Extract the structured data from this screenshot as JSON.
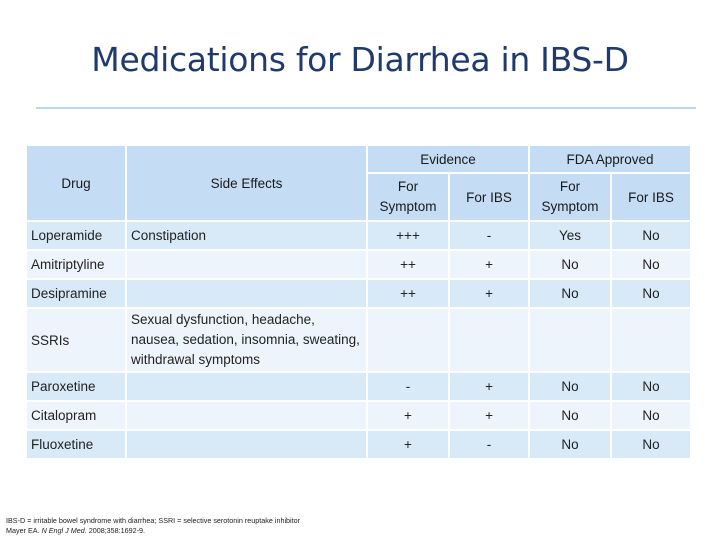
{
  "title": "Medications for Diarrhea in IBS-D",
  "table": {
    "headers": {
      "drug": "Drug",
      "side_effects": "Side Effects",
      "evidence": "Evidence",
      "fda": "FDA Approved",
      "for_symptom": "For Symptom",
      "for_ibs": "For IBS"
    },
    "rows": [
      {
        "drug": "Loperamide",
        "side": "Constipation",
        "ev_sym": "+++",
        "ev_ibs": "-",
        "fda_sym": "Yes",
        "fda_ibs": "No"
      },
      {
        "drug": "Amitriptyline",
        "side": "",
        "ev_sym": "++",
        "ev_ibs": "+",
        "fda_sym": "No",
        "fda_ibs": "No"
      },
      {
        "drug": "Desipramine",
        "side": "",
        "ev_sym": "++",
        "ev_ibs": "+",
        "fda_sym": "No",
        "fda_ibs": "No"
      },
      {
        "drug": "SSRIs",
        "side": "Sexual dysfunction, headache, nausea, sedation, insomnia, sweating, withdrawal symptoms",
        "ev_sym": "",
        "ev_ibs": "",
        "fda_sym": "",
        "fda_ibs": ""
      },
      {
        "drug": "Paroxetine",
        "side": "",
        "ev_sym": "-",
        "ev_ibs": "+",
        "fda_sym": "No",
        "fda_ibs": "No"
      },
      {
        "drug": "Citalopram",
        "side": "",
        "ev_sym": "+",
        "ev_ibs": "+",
        "fda_sym": "No",
        "fda_ibs": "No"
      },
      {
        "drug": "Fluoxetine",
        "side": "",
        "ev_sym": "+",
        "ev_ibs": "-",
        "fda_sym": "No",
        "fda_ibs": "No"
      }
    ]
  },
  "footnote": {
    "line1": "IBS-D = irritable bowel syndrome with diarrhea; SSRI = selective serotonin reuptake inhibitor",
    "line2_author": "Mayer EA. ",
    "line2_journal": "N Engl J Med.",
    "line2_rest": " 2008;358:1692-9."
  }
}
